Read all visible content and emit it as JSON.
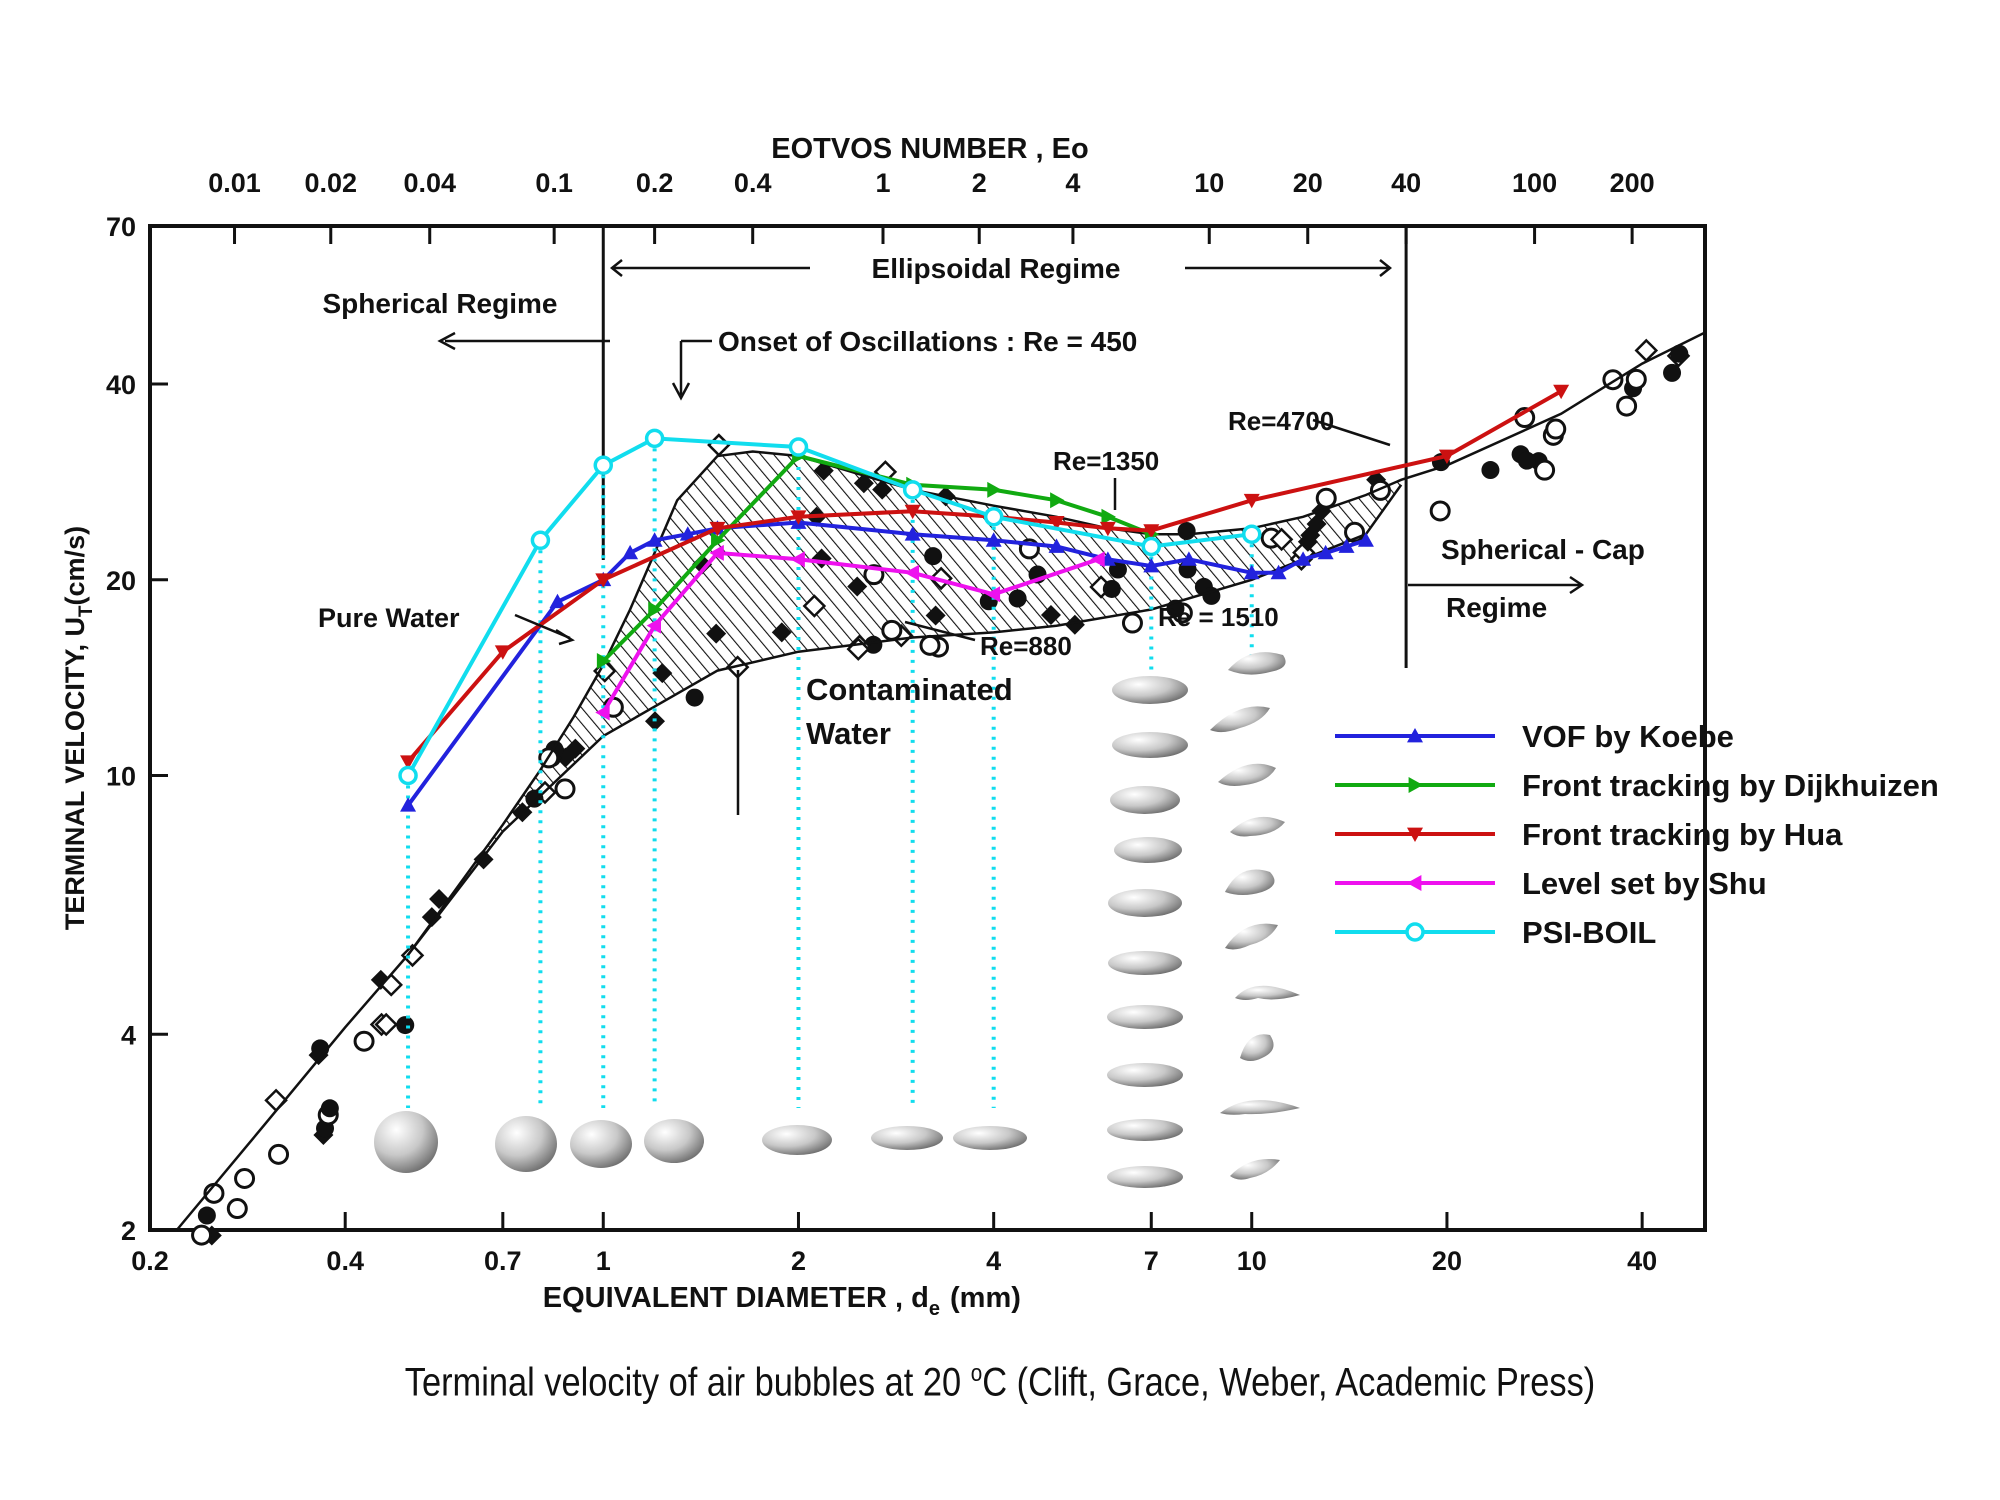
{
  "chart_data": {
    "type": "line",
    "scale": "log-log",
    "top_axis_title": "EOTVOS NUMBER , Eo",
    "xlabel": "EQUIVALENT  DIAMETER , d",
    "xlabel_sub": "e",
    "xlabel_unit": "(mm)",
    "ylabel": "TERMINAL VELOCITY,  U",
    "ylabel_sub": "T",
    "ylabel_unit": "(cm/s)",
    "xlim": [
      0.2,
      50
    ],
    "ylim": [
      2,
      70
    ],
    "x_ticks": [
      {
        "v": 0.2,
        "label": "0.2"
      },
      {
        "v": 0.4,
        "label": "0.4"
      },
      {
        "v": 0.7,
        "label": "0.7"
      },
      {
        "v": 1,
        "label": "1"
      },
      {
        "v": 2,
        "label": "2"
      },
      {
        "v": 4,
        "label": "4"
      },
      {
        "v": 7,
        "label": "7"
      },
      {
        "v": 10,
        "label": "10"
      },
      {
        "v": 20,
        "label": "20"
      },
      {
        "v": 40,
        "label": "40"
      }
    ],
    "y_ticks": [
      {
        "v": 2,
        "label": "2"
      },
      {
        "v": 4,
        "label": "4"
      },
      {
        "v": 10,
        "label": "10"
      },
      {
        "v": 20,
        "label": "20"
      },
      {
        "v": 40,
        "label": "40"
      },
      {
        "v": 70,
        "label": "70"
      }
    ],
    "top_ticks": [
      {
        "d": 0.27,
        "label": "0.01"
      },
      {
        "d": 0.38,
        "label": "0.02"
      },
      {
        "d": 0.54,
        "label": "0.04"
      },
      {
        "d": 0.84,
        "label": "0.1"
      },
      {
        "d": 1.2,
        "label": "0.2"
      },
      {
        "d": 1.7,
        "label": "0.4"
      },
      {
        "d": 2.7,
        "label": "1"
      },
      {
        "d": 3.8,
        "label": "2"
      },
      {
        "d": 5.3,
        "label": "4"
      },
      {
        "d": 8.6,
        "label": "10"
      },
      {
        "d": 12.2,
        "label": "20"
      },
      {
        "d": 17.3,
        "label": "40"
      },
      {
        "d": 27.3,
        "label": "100"
      },
      {
        "d": 38.6,
        "label": "200"
      }
    ],
    "series": [
      {
        "name": "VOF by Koebe",
        "color": "#2222dd",
        "marker": "triangle-up",
        "x": [
          0.5,
          0.85,
          1.0,
          1.1,
          1.2,
          1.35,
          1.5,
          2.0,
          3.0,
          4.0,
          5.0,
          6.0,
          7.0,
          8.0,
          10.0,
          11.0,
          12.0,
          13.0,
          14.0,
          15.0
        ],
        "y": [
          9.0,
          18.5,
          20.0,
          22.0,
          23.0,
          23.5,
          24.0,
          24.5,
          23.5,
          23.0,
          22.5,
          21.5,
          21.0,
          21.5,
          20.5,
          20.5,
          21.5,
          22.0,
          22.5,
          23.0
        ]
      },
      {
        "name": "Front tracking by Dijkhuizen",
        "color": "#11aa11",
        "marker": "triangle-right",
        "x": [
          1.0,
          1.2,
          1.5,
          2.0,
          3.0,
          4.0,
          5.0,
          6.0,
          7.0
        ],
        "y": [
          15.0,
          18.0,
          23.0,
          31.0,
          28.0,
          27.5,
          26.5,
          25.0,
          23.5
        ]
      },
      {
        "name": "Front tracking by Hua",
        "color": "#cc1111",
        "marker": "triangle-down",
        "x": [
          0.5,
          0.7,
          1.0,
          1.5,
          2.0,
          3.0,
          4.0,
          5.0,
          6.0,
          7.0,
          10.0,
          20.0,
          30.0
        ],
        "y": [
          10.5,
          15.5,
          20.0,
          24.0,
          25.0,
          25.5,
          25.0,
          24.5,
          24.0,
          23.8,
          26.5,
          31.0,
          39.0
        ]
      },
      {
        "name": "Level set by Shu",
        "color": "#ee11ee",
        "marker": "triangle-left",
        "x": [
          1.0,
          1.2,
          1.5,
          2.0,
          3.0,
          4.0,
          5.8
        ],
        "y": [
          12.5,
          17.0,
          22.0,
          21.5,
          20.5,
          19.0,
          21.5
        ]
      },
      {
        "name": "PSI-BOIL",
        "color": "#11ddee",
        "marker": "circle",
        "x": [
          0.5,
          0.8,
          1.0,
          1.2,
          2.0,
          3.0,
          4.0,
          7.0,
          10.0
        ],
        "y": [
          10.0,
          23.0,
          30.0,
          33.0,
          32.0,
          27.5,
          25.0,
          22.5,
          23.5
        ]
      }
    ],
    "pure_water_curve": {
      "x": [
        0.22,
        0.3,
        0.4,
        0.5,
        0.6,
        0.7,
        0.8,
        0.9,
        1.0,
        1.1,
        1.2,
        1.3,
        1.5,
        1.7,
        2.0,
        2.5,
        3.0,
        4.0,
        5.0,
        6.0,
        7.0,
        8.0,
        10.0,
        12.0,
        15.0,
        17.0,
        20.0,
        30.0,
        40.0,
        50.0
      ],
      "y": [
        2.0,
        2.9,
        4.1,
        5.3,
        6.8,
        8.4,
        10.2,
        12.3,
        14.8,
        18.0,
        22.0,
        26.5,
        31.0,
        31.5,
        31.0,
        29.0,
        27.5,
        26.0,
        25.0,
        24.0,
        23.5,
        23.5,
        24.0,
        25.0,
        27.0,
        28.5,
        30.0,
        36.0,
        43.0,
        48.0
      ]
    },
    "contaminated_curve": {
      "x": [
        0.5,
        0.7,
        1.0,
        1.5,
        2.0,
        3.0,
        4.0,
        5.0,
        7.0,
        10.0,
        15.0,
        17.0
      ],
      "y": [
        5.3,
        8.2,
        11.5,
        14.5,
        15.5,
        16.3,
        16.6,
        17.0,
        18.0,
        20.0,
        23.5,
        28.0
      ]
    },
    "shaded_region": "Contaminated Water band between pure-water and contaminated curves",
    "guide_line_x": [
      0.5,
      0.8,
      1.0,
      1.2,
      2.0,
      3.0,
      4.0,
      7.0,
      10.0
    ],
    "bubble_diameters_row": [
      0.5,
      0.8,
      1.0,
      1.2,
      2.0,
      3.0,
      4.0
    ],
    "regime_lines_x": [
      1.0,
      17.3
    ],
    "legend_position": "right",
    "annotations": {
      "ellipsoidal": "Ellipsoidal  Regime",
      "spherical": "Spherical  Regime",
      "onset": "Onset  of  Oscillations :  Re = 450",
      "re4700": "Re=4700",
      "re1350": "Re=1350",
      "re880": "Re=880",
      "re1510": "Re = 1510",
      "pure_water": "Pure Water",
      "contaminated_1": "Contaminated",
      "contaminated_2": "Water",
      "spherical_cap_1": "Spherical - Cap",
      "spherical_cap_2": "Regime"
    }
  },
  "caption": {
    "text_before": "Terminal velocity of air bubbles at 20 ",
    "superscript": "o",
    "text_after": "C (Clift, Grace, Weber, Academic Press)"
  }
}
